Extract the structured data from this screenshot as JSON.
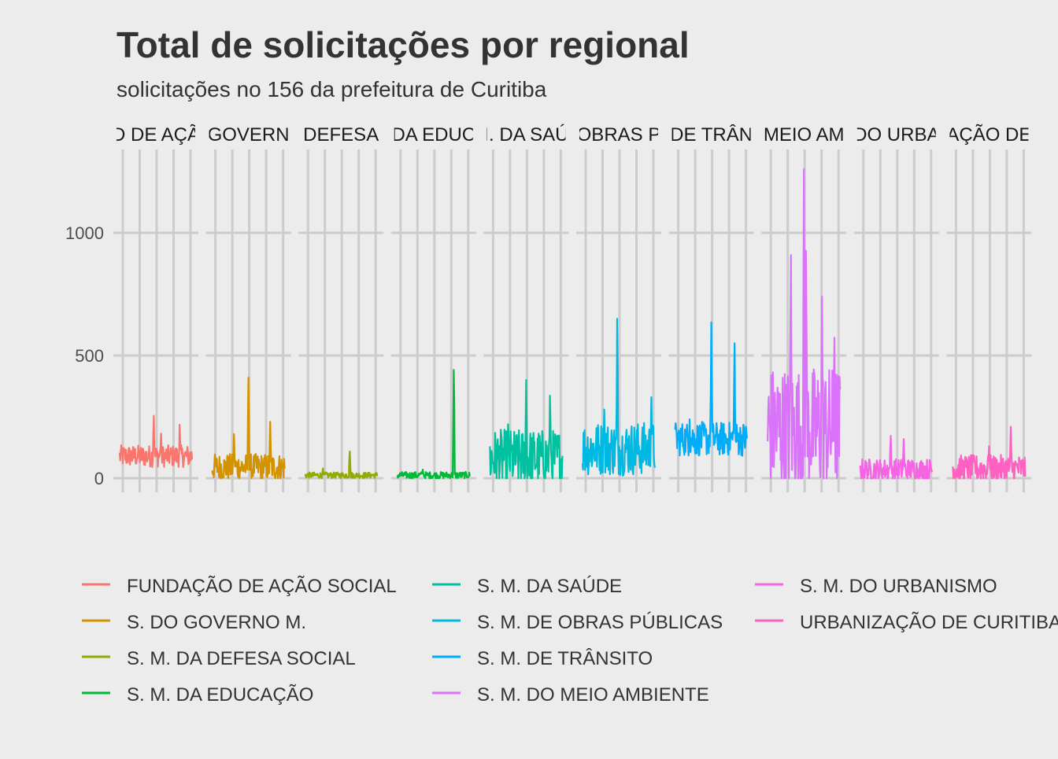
{
  "chart_data": {
    "type": "line",
    "title": "Total de solicitações por regional",
    "subtitle": "solicitações no 156 da prefeitura de Curitiba",
    "xlabel": "",
    "ylabel": "",
    "ylim": [
      0,
      1250
    ],
    "yticks": [
      0,
      500,
      1000
    ],
    "ytick_labels": [
      "0",
      "500",
      "1000"
    ],
    "grid": true,
    "facet": "columns",
    "legend_position": "bottom",
    "series": [
      {
        "name": "FUNDAÇÃO DE AÇÃO SOCIAL",
        "strip_label": "D DE AÇÃ",
        "color": "#F8766D",
        "baseline": 90,
        "noise": 45,
        "spikes": [
          [
            0.47,
            280
          ],
          [
            0.57,
            200
          ],
          [
            0.83,
            240
          ]
        ]
      },
      {
        "name": "S. DO GOVERNO M.",
        "strip_label": "GOVERN",
        "color": "#D39200",
        "baseline": 45,
        "noise": 55,
        "spikes": [
          [
            0.3,
            180
          ],
          [
            0.5,
            410
          ],
          [
            0.8,
            230
          ]
        ]
      },
      {
        "name": "S. M. DA DEFESA SOCIAL",
        "strip_label": "DEFESA",
        "color": "#93AA00",
        "baseline": 12,
        "noise": 12,
        "spikes": [
          [
            0.62,
            120
          ],
          [
            0.25,
            40
          ]
        ]
      },
      {
        "name": "S. M. DA EDUCAÇÃO",
        "strip_label": "DA EDUC",
        "color": "#00BA38",
        "baseline": 12,
        "noise": 14,
        "spikes": [
          [
            0.78,
            485
          ],
          [
            0.35,
            35
          ]
        ]
      },
      {
        "name": "S. M. DA SAÚDE",
        "strip_label": "I. DA SAÚ",
        "color": "#00C19F",
        "baseline": 80,
        "noise": 120,
        "spikes": [
          [
            0.5,
            400
          ],
          [
            0.83,
            370
          ],
          [
            0.25,
            220
          ]
        ]
      },
      {
        "name": "S. M. DE OBRAS PÚBLICAS",
        "strip_label": "OBRAS P",
        "color": "#00B9E3",
        "baseline": 120,
        "noise": 110,
        "spikes": [
          [
            0.48,
            715
          ],
          [
            0.3,
            280
          ],
          [
            0.95,
            330
          ]
        ]
      },
      {
        "name": "S. M. DE TRÂNSITO",
        "strip_label": "DE TRÂN",
        "color": "#00ADFA",
        "baseline": 160,
        "noise": 70,
        "spikes": [
          [
            0.5,
            635
          ],
          [
            0.82,
            605
          ],
          [
            0.2,
            240
          ]
        ]
      },
      {
        "name": "S. M. DO MEIO AMBIENTE",
        "strip_label": "MEIO AM",
        "color": "#DB72FB",
        "baseline": 200,
        "noise": 260,
        "spikes": [
          [
            0.32,
            1000
          ],
          [
            0.5,
            1260
          ],
          [
            0.53,
            1020
          ],
          [
            0.75,
            740
          ],
          [
            0.92,
            630
          ]
        ]
      },
      {
        "name": "S. M. DO URBANISMO",
        "strip_label": "DO URBA",
        "color": "#F564E3",
        "baseline": 35,
        "noise": 45,
        "spikes": [
          [
            0.42,
            190
          ],
          [
            0.6,
            160
          ]
        ]
      },
      {
        "name": "URBANIZAÇÃO DE CURITIBA",
        "strip_label": "AÇÃO DE",
        "color": "#FF61C3",
        "baseline": 40,
        "noise": 55,
        "spikes": [
          [
            0.8,
            210
          ],
          [
            0.5,
            130
          ]
        ]
      }
    ],
    "legend_entries": [
      "FUNDAÇÃO DE AÇÃO SOCIAL",
      "S. DO GOVERNO M.",
      "S. M. DA DEFESA SOCIAL",
      "S. M. DA EDUCAÇÃO",
      "S. M. DA SAÚDE",
      "S. M. DE OBRAS PÚBLICAS",
      "S. M. DE TRÂNSITO",
      "S. M. DO MEIO AMBIENTE",
      "S. M. DO URBANISMO",
      "URBANIZAÇÃO DE CURITIBA"
    ]
  }
}
